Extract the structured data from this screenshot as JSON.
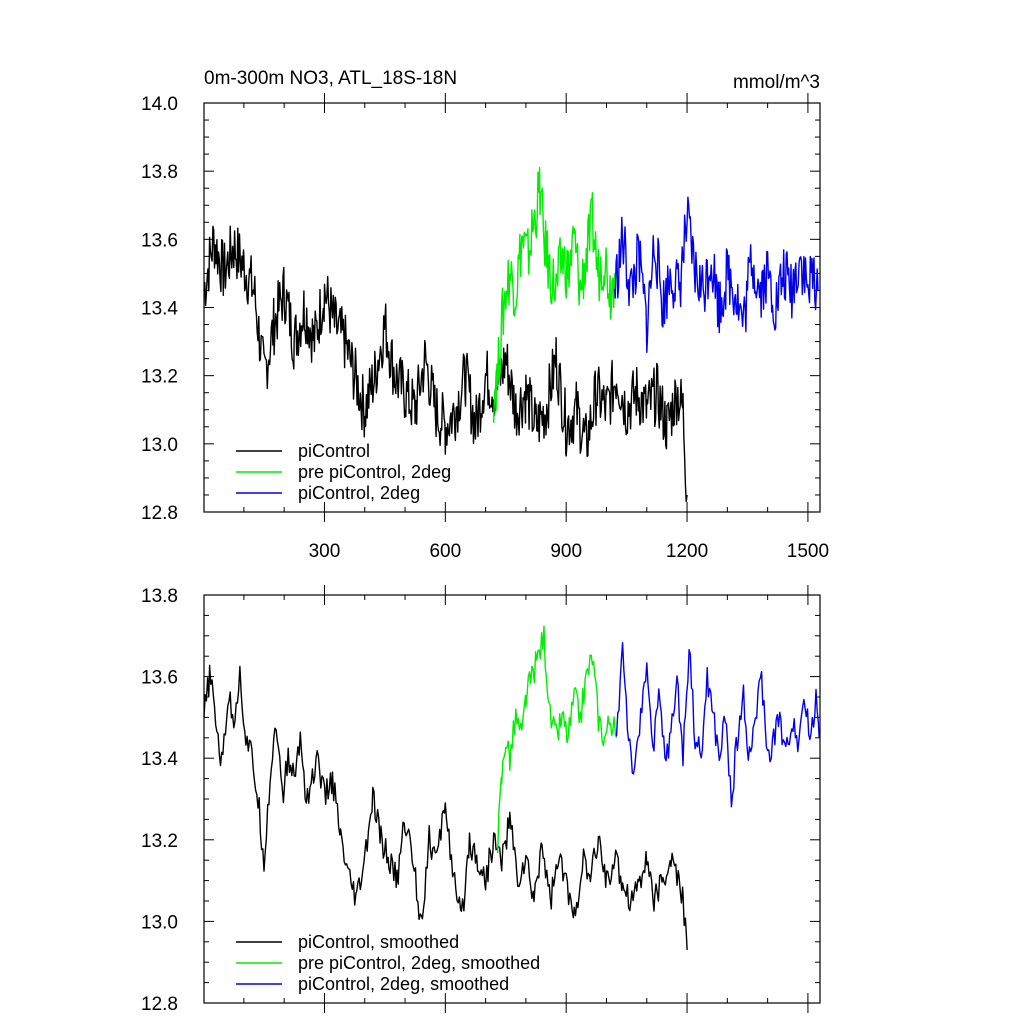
{
  "figure": {
    "title_left": "0m-300m NO3, ATL_18S-18N",
    "title_right": "mmol/m^3"
  },
  "colors": {
    "piControl": "#000000",
    "pre_piControl_2deg": "#00ee00",
    "piControl_2deg": "#0000ee"
  },
  "chart_data": [
    {
      "type": "line",
      "title": "0m-300m NO3, ATL_18S-18N",
      "units": "mmol/m^3",
      "xlim": [
        1,
        1530
      ],
      "ylim": [
        12.8,
        14.0
      ],
      "x_ticks": [
        300,
        600,
        900,
        1200,
        1500
      ],
      "y_ticks": [
        12.8,
        13.0,
        13.2,
        13.4,
        13.6,
        13.8,
        14.0
      ],
      "y_tick_labels": [
        "12.8",
        "13.0",
        "13.2",
        "13.4",
        "13.6",
        "13.8",
        "14.0"
      ],
      "x_tick_labels": [
        "300",
        "600",
        "900",
        "1200",
        "1500"
      ],
      "legend_position": "bottom-left",
      "series": [
        {
          "name": "piControl",
          "color": "#000000",
          "x": [
            1,
            25,
            50,
            75,
            100,
            125,
            150,
            175,
            200,
            225,
            250,
            275,
            300,
            325,
            350,
            375,
            400,
            425,
            450,
            475,
            500,
            525,
            550,
            575,
            600,
            625,
            650,
            675,
            700,
            725,
            750,
            775,
            800,
            825,
            850,
            875,
            900,
            925,
            950,
            975,
            1000,
            1025,
            1050,
            1075,
            1100,
            1125,
            1150,
            1175,
            1190,
            1200
          ],
          "y": [
            13.45,
            13.6,
            13.5,
            13.58,
            13.52,
            13.45,
            13.2,
            13.35,
            13.45,
            13.3,
            13.4,
            13.3,
            13.45,
            13.35,
            13.3,
            13.2,
            13.1,
            13.2,
            13.35,
            13.2,
            13.15,
            13.1,
            13.25,
            13.1,
            13.05,
            13.1,
            13.2,
            13.05,
            13.2,
            13.15,
            13.25,
            13.1,
            13.15,
            13.05,
            13.1,
            13.25,
            13.05,
            13.1,
            13.0,
            13.15,
            13.1,
            13.2,
            13.1,
            13.15,
            13.1,
            13.15,
            13.05,
            13.15,
            13.1,
            12.85
          ]
        },
        {
          "name": "pre piControl, 2deg",
          "color": "#00ee00",
          "x": [
            720,
            730,
            740,
            750,
            760,
            775,
            790,
            805,
            820,
            835,
            845,
            860,
            875,
            890,
            905,
            920,
            935,
            950,
            965,
            980,
            995,
            1010,
            1020
          ],
          "y": [
            13.15,
            13.2,
            13.35,
            13.45,
            13.5,
            13.45,
            13.6,
            13.55,
            13.65,
            13.75,
            13.6,
            13.5,
            13.45,
            13.55,
            13.5,
            13.6,
            13.45,
            13.55,
            13.65,
            13.5,
            13.55,
            13.45,
            13.5
          ]
        },
        {
          "name": "piControl, 2deg",
          "color": "#0000ee",
          "x": [
            1020,
            1040,
            1060,
            1080,
            1100,
            1120,
            1140,
            1160,
            1180,
            1200,
            1220,
            1240,
            1260,
            1280,
            1300,
            1320,
            1340,
            1360,
            1380,
            1400,
            1420,
            1440,
            1460,
            1480,
            1500,
            1515,
            1525
          ],
          "y": [
            13.45,
            13.6,
            13.45,
            13.55,
            13.35,
            13.6,
            13.4,
            13.5,
            13.45,
            13.65,
            13.5,
            13.45,
            13.55,
            13.4,
            13.5,
            13.45,
            13.35,
            13.55,
            13.45,
            13.5,
            13.4,
            13.5,
            13.45,
            13.55,
            13.45,
            13.5,
            13.45
          ]
        }
      ]
    },
    {
      "type": "line",
      "xlim": [
        1,
        1530
      ],
      "ylim": [
        12.8,
        13.8
      ],
      "x_ticks": [
        300,
        600,
        900,
        1200,
        1500
      ],
      "y_ticks": [
        12.8,
        13.0,
        13.2,
        13.4,
        13.6,
        13.8
      ],
      "y_tick_labels": [
        "12.8",
        "13.0",
        "13.2",
        "13.4",
        "13.6",
        "13.8"
      ],
      "legend_position": "bottom-left",
      "series": [
        {
          "name": "piControl, smoothed",
          "color": "#000000",
          "x": [
            1,
            15,
            30,
            45,
            60,
            75,
            90,
            105,
            120,
            135,
            150,
            165,
            180,
            195,
            210,
            225,
            240,
            255,
            270,
            285,
            300,
            320,
            340,
            360,
            380,
            400,
            420,
            440,
            460,
            480,
            500,
            520,
            540,
            560,
            580,
            600,
            620,
            640,
            660,
            680,
            700,
            720,
            740,
            760,
            780,
            800,
            820,
            840,
            860,
            880,
            900,
            920,
            940,
            960,
            980,
            1000,
            1020,
            1040,
            1060,
            1080,
            1100,
            1120,
            1140,
            1160,
            1180,
            1190,
            1200
          ],
          "y": [
            13.5,
            13.6,
            13.5,
            13.38,
            13.55,
            13.5,
            13.6,
            13.45,
            13.4,
            13.3,
            13.15,
            13.35,
            13.5,
            13.3,
            13.4,
            13.35,
            13.45,
            13.3,
            13.35,
            13.4,
            13.3,
            13.35,
            13.2,
            13.1,
            13.05,
            13.15,
            13.3,
            13.2,
            13.15,
            13.1,
            13.25,
            13.15,
            13.0,
            13.2,
            13.15,
            13.3,
            13.1,
            13.0,
            13.2,
            13.15,
            13.1,
            13.2,
            13.15,
            13.25,
            13.1,
            13.15,
            13.05,
            13.2,
            13.05,
            13.15,
            13.1,
            13.0,
            13.15,
            13.1,
            13.2,
            13.1,
            13.15,
            13.1,
            13.05,
            13.1,
            13.15,
            13.05,
            13.1,
            13.15,
            13.1,
            13.05,
            12.93
          ]
        },
        {
          "name": "pre piControl, 2deg, smoothed",
          "color": "#00ee00",
          "x": [
            730,
            740,
            750,
            760,
            775,
            790,
            800,
            815,
            830,
            845,
            860,
            875,
            890,
            905,
            920,
            935,
            950,
            965,
            980,
            995,
            1010,
            1025
          ],
          "y": [
            13.2,
            13.35,
            13.45,
            13.4,
            13.5,
            13.45,
            13.55,
            13.6,
            13.65,
            13.7,
            13.5,
            13.45,
            13.5,
            13.45,
            13.55,
            13.5,
            13.6,
            13.65,
            13.5,
            13.45,
            13.5,
            13.45
          ]
        },
        {
          "name": "piControl, 2deg, smoothed",
          "color": "#0000ee",
          "x": [
            1025,
            1040,
            1055,
            1070,
            1085,
            1100,
            1115,
            1130,
            1145,
            1160,
            1175,
            1190,
            1205,
            1220,
            1235,
            1250,
            1265,
            1280,
            1295,
            1310,
            1325,
            1340,
            1355,
            1370,
            1385,
            1400,
            1415,
            1430,
            1445,
            1460,
            1475,
            1490,
            1505,
            1520,
            1528
          ],
          "y": [
            13.45,
            13.68,
            13.45,
            13.35,
            13.5,
            13.65,
            13.4,
            13.55,
            13.4,
            13.45,
            13.6,
            13.4,
            13.68,
            13.45,
            13.4,
            13.6,
            13.5,
            13.4,
            13.5,
            13.3,
            13.45,
            13.55,
            13.4,
            13.5,
            13.6,
            13.4,
            13.45,
            13.5,
            13.4,
            13.5,
            13.45,
            13.55,
            13.45,
            13.55,
            13.45
          ]
        }
      ]
    }
  ]
}
